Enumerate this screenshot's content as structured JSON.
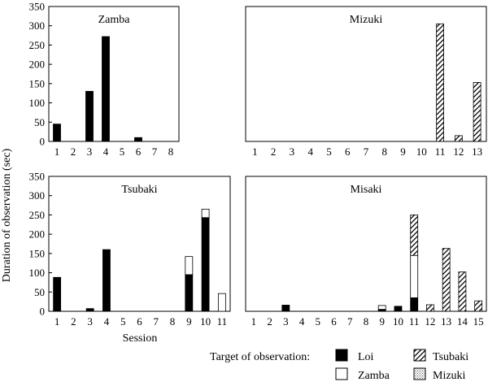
{
  "figure": {
    "ylabel": "Duration of observation (sec)",
    "xlabel": "Session",
    "legend_title": "Target of observation:",
    "legend": [
      {
        "name": "Loi",
        "pattern": "solid-black"
      },
      {
        "name": "Zamba",
        "pattern": "white"
      },
      {
        "name": "Tsubaki",
        "pattern": "hatch"
      },
      {
        "name": "Mizuki",
        "pattern": "dotted"
      }
    ]
  },
  "chart_data": [
    {
      "type": "bar",
      "stacked": true,
      "title": "Zamba",
      "categories": [
        "1",
        "2",
        "3",
        "4",
        "5",
        "6",
        "7",
        "8"
      ],
      "ylim": [
        0,
        350
      ],
      "yticks": [
        0,
        50,
        100,
        150,
        200,
        250,
        300,
        350
      ],
      "series": [
        {
          "name": "Loi",
          "values": [
            45,
            0,
            130,
            272,
            0,
            10,
            0,
            0
          ]
        }
      ]
    },
    {
      "type": "bar",
      "stacked": true,
      "title": "Mizuki",
      "categories": [
        "1",
        "2",
        "3",
        "4",
        "5",
        "6",
        "7",
        "8",
        "9",
        "10",
        "11",
        "12",
        "13"
      ],
      "ylim": [
        0,
        350
      ],
      "yticks": [],
      "series": [
        {
          "name": "Tsubaki",
          "values": [
            0,
            0,
            0,
            0,
            0,
            0,
            0,
            0,
            0,
            0,
            305,
            15,
            153
          ]
        }
      ]
    },
    {
      "type": "bar",
      "stacked": true,
      "title": "Tsubaki",
      "categories": [
        "1",
        "2",
        "3",
        "4",
        "5",
        "6",
        "7",
        "8",
        "9",
        "10",
        "11"
      ],
      "ylim": [
        0,
        350
      ],
      "yticks": [
        0,
        50,
        100,
        150,
        200,
        250,
        300,
        350
      ],
      "series": [
        {
          "name": "Loi",
          "values": [
            88,
            0,
            7,
            160,
            0,
            0,
            0,
            0,
            95,
            243,
            0
          ]
        },
        {
          "name": "Zamba",
          "values": [
            0,
            0,
            0,
            0,
            0,
            0,
            0,
            0,
            47,
            22,
            46
          ]
        }
      ]
    },
    {
      "type": "bar",
      "stacked": true,
      "title": "Misaki",
      "categories": [
        "1",
        "2",
        "3",
        "4",
        "5",
        "6",
        "7",
        "8",
        "9",
        "10",
        "11",
        "12",
        "13",
        "14",
        "15"
      ],
      "ylim": [
        0,
        350
      ],
      "yticks": [],
      "series": [
        {
          "name": "Loi",
          "values": [
            0,
            0,
            16,
            0,
            0,
            0,
            0,
            0,
            5,
            13,
            35,
            0,
            0,
            0,
            0
          ]
        },
        {
          "name": "Zamba",
          "values": [
            0,
            0,
            0,
            0,
            0,
            0,
            0,
            0,
            10,
            0,
            110,
            0,
            0,
            0,
            0
          ]
        },
        {
          "name": "Tsubaki",
          "values": [
            0,
            0,
            0,
            0,
            0,
            0,
            0,
            0,
            0,
            0,
            105,
            17,
            163,
            102,
            27
          ]
        }
      ]
    }
  ]
}
